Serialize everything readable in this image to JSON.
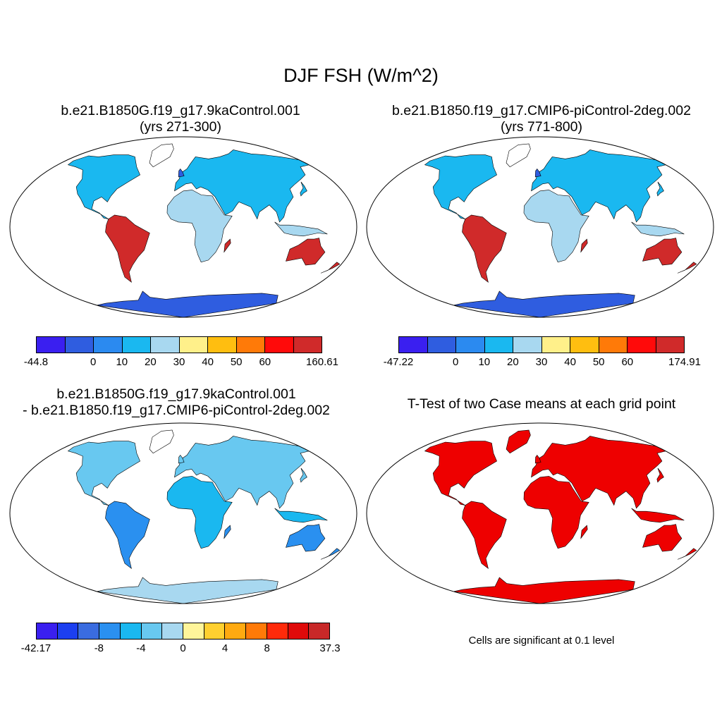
{
  "title": "DJF FSH (W/m^2)",
  "panels": {
    "p1": {
      "title": "b.e21.B1850G.f19_g17.9kaControl.001",
      "subtitle": "(yrs 271-300)"
    },
    "p2": {
      "title": "b.e21.B1850.f19_g17.CMIP6-piControl-2deg.002",
      "subtitle": "(yrs 771-800)"
    },
    "p3": {
      "title": "b.e21.B1850G.f19_g17.9kaControl.001",
      "subtitle": "- b.e21.B1850.f19_g17.CMIP6-piControl-2deg.002"
    },
    "p4": {
      "title": "T-Test of two Case means at each grid point",
      "note": "Cells are significant at 0.1 level"
    }
  },
  "colorbars": {
    "cb1": {
      "colors": [
        "#3a1ff0",
        "#2f5de0",
        "#2b8af0",
        "#1ab8f0",
        "#a8d8f0",
        "#fff08a",
        "#ffbe10",
        "#ff7a08",
        "#ff0a0a",
        "#d02a2a"
      ],
      "labels": [
        "-44.8",
        "0",
        "10",
        "20",
        "30",
        "40",
        "50",
        "60",
        "160.61"
      ]
    },
    "cb2": {
      "colors": [
        "#3a1ff0",
        "#2f5de0",
        "#2b8af0",
        "#1ab8f0",
        "#a8d8f0",
        "#fff08a",
        "#ffbe10",
        "#ff7a08",
        "#ff0a0a",
        "#d02a2a"
      ],
      "labels": [
        "-47.22",
        "0",
        "10",
        "20",
        "30",
        "40",
        "50",
        "60",
        "174.91"
      ]
    },
    "cb3": {
      "colors": [
        "#3a1ff0",
        "#1c3ff0",
        "#3a6ce0",
        "#2a90f0",
        "#1ab8f0",
        "#68c8f0",
        "#a8d8f0",
        "#fff59a",
        "#ffd030",
        "#ffaa10",
        "#ff7a08",
        "#ff2a0a",
        "#e00a0a",
        "#c82828"
      ],
      "labels": [
        "-42.17",
        "-8",
        "-4",
        "0",
        "4",
        "8",
        "37.3"
      ]
    }
  },
  "colors": {
    "significant": "#ee0000",
    "land_outline": "#000000"
  }
}
